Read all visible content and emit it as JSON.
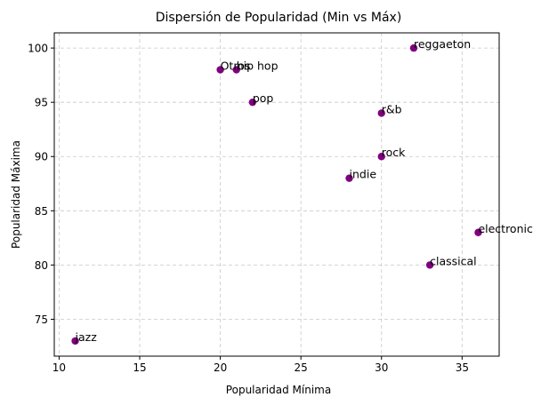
{
  "chart_data": {
    "type": "scatter",
    "title": "Dispersión de Popularidad (Min vs Máx)",
    "xlabel": "Popularidad Mínima",
    "ylabel": "Popularidad Máxima",
    "xlim": [
      9.7,
      37.3
    ],
    "ylim": [
      71.6,
      101.4
    ],
    "xticks": [
      10,
      15,
      20,
      25,
      30,
      35
    ],
    "yticks": [
      75,
      80,
      85,
      90,
      95,
      100
    ],
    "grid": true,
    "marker_color": "#800080",
    "points": [
      {
        "label": "reggaeton",
        "x": 32,
        "y": 100
      },
      {
        "label": "Otros",
        "x": 20,
        "y": 98
      },
      {
        "label": "hip hop",
        "x": 21,
        "y": 98
      },
      {
        "label": "pop",
        "x": 22,
        "y": 95
      },
      {
        "label": "r&b",
        "x": 30,
        "y": 94
      },
      {
        "label": "rock",
        "x": 30,
        "y": 90
      },
      {
        "label": "indie",
        "x": 28,
        "y": 88
      },
      {
        "label": "electronic",
        "x": 36,
        "y": 83
      },
      {
        "label": "classical",
        "x": 33,
        "y": 80
      },
      {
        "label": "jazz",
        "x": 11,
        "y": 73
      }
    ]
  }
}
